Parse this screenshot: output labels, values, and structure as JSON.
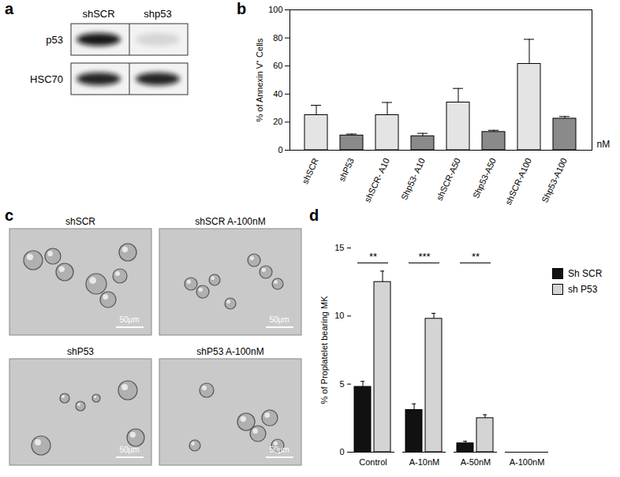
{
  "chart_data": [
    {
      "panel": "b",
      "type": "bar",
      "y_label": "% of Annexin V⁺ Cells",
      "categories": [
        "shSCR",
        "shP53",
        "shSCR- A10",
        "Shp53- A10",
        "shSCR-A50",
        "Shp53-A50",
        "shSCR-A100",
        "Shp53-A100"
      ],
      "values": [
        25,
        10.5,
        25,
        10,
        34,
        13,
        61.5,
        22.5
      ],
      "errors": [
        7,
        1,
        9,
        2,
        10,
        1.2,
        17.5,
        1.5
      ],
      "colors": [
        "#e4e4e4",
        "#8a8a8a",
        "#e4e4e4",
        "#8a8a8a",
        "#e4e4e4",
        "#8a8a8a",
        "#e4e4e4",
        "#8a8a8a"
      ],
      "ylim": [
        0,
        100
      ],
      "yticks": [
        0,
        20,
        40,
        60,
        80,
        100
      ],
      "annotations": [
        {
          "text": "nM"
        }
      ]
    },
    {
      "panel": "d",
      "type": "bar",
      "y_label": "% of Proplatelet bearing MK",
      "categories": [
        "Control",
        "A-10nM",
        "A-50nM",
        "A-100nM"
      ],
      "series": [
        {
          "name": "Sh SCR",
          "color": "#111111",
          "values": [
            4.8,
            3.1,
            0.65,
            0
          ],
          "errors": [
            0.4,
            0.45,
            0.15,
            0
          ]
        },
        {
          "name": "sh P53",
          "color": "#d4d4d4",
          "values": [
            12.5,
            9.8,
            2.5,
            0
          ],
          "errors": [
            0.8,
            0.4,
            0.25,
            0
          ]
        }
      ],
      "ylim": [
        0,
        15
      ],
      "yticks": [
        0,
        5,
        10,
        15
      ],
      "legend": "top-right",
      "annotations": [
        {
          "category": "Control",
          "text": "**",
          "y": 13.9
        },
        {
          "category": "A-10nM",
          "text": "***",
          "y": 13.9
        },
        {
          "category": "A-50nM",
          "text": "**",
          "y": 13.9
        }
      ]
    }
  ],
  "blot": {
    "panel": "a",
    "lanes": [
      "shSCR",
      "shp53"
    ],
    "rows": [
      "p53",
      "HSC70"
    ]
  },
  "micrographs": {
    "panel": "c",
    "images": [
      {
        "label": "shSCR",
        "scale_bar": "50μm"
      },
      {
        "label": "shSCR A-100nM",
        "scale_bar": "50μm"
      },
      {
        "label": "shP53",
        "scale_bar": "50μm"
      },
      {
        "label": "shP53 A-100nM",
        "scale_bar": "50μm"
      }
    ]
  }
}
